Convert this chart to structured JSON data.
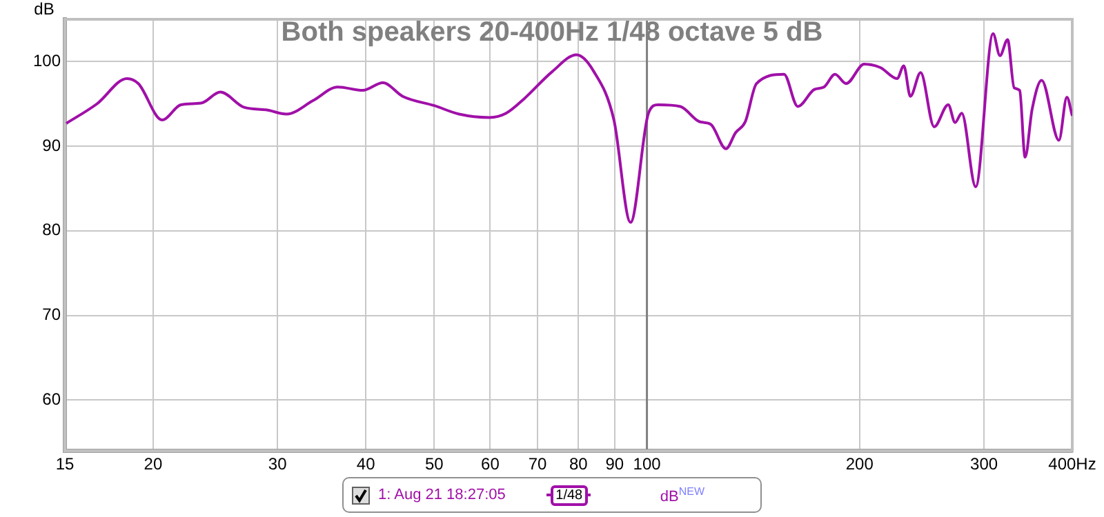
{
  "chart_data": {
    "type": "line",
    "title": "Both speakers 20-400Hz 1/48 octave 5 dB",
    "ylabel": "dB",
    "annotations": [
      "1/48",
      "dB$^{NEW}$"
    ],
    "x": [
      15.07,
      16.65,
      18.37,
      19.06,
      20.6,
      21.9,
      23.4,
      24.9,
      26.9,
      28.9,
      30.9,
      33.7,
      36.5,
      39.6,
      42.3,
      45.1,
      50.0,
      54.2,
      59.9,
      63.2,
      67.0,
      73.4,
      79.5,
      84.0,
      89.8,
      94.8,
      100.5,
      103.7,
      111.5,
      118.7,
      123.1,
      129.4,
      133.5,
      137.8,
      142.9,
      156.3,
      163.5,
      172.5,
      178.1,
      184.6,
      191.4,
      203,
      214,
      226,
      231,
      236,
      244,
      255,
      267,
      273,
      279,
      292,
      309,
      316,
      324,
      331,
      337,
      343,
      351,
      362,
      383,
      393,
      400
    ],
    "series": [
      {
        "name": "1: Aug 21 18:27:05",
        "color": "#a010a8",
        "values": [
          92.7,
          95.0,
          98.0,
          97.4,
          93.1,
          94.9,
          95.1,
          96.4,
          94.6,
          94.3,
          93.8,
          95.4,
          97.0,
          96.6,
          97.5,
          95.9,
          94.8,
          93.8,
          93.4,
          93.9,
          95.6,
          98.8,
          100.8,
          98.9,
          93.1,
          81.0,
          93.9,
          94.9,
          94.7,
          92.9,
          92.6,
          89.7,
          91.6,
          92.9,
          97.4,
          98.5,
          94.7,
          96.7,
          97.0,
          98.5,
          97.4,
          99.7,
          99.3,
          98.0,
          99.5,
          95.9,
          98.7,
          92.3,
          94.9,
          92.8,
          93.9,
          85.2,
          103.3,
          100.7,
          102.6,
          96.9,
          96.6,
          88.7,
          94.4,
          97.8,
          90.7,
          95.8,
          93.6
        ]
      }
    ],
    "log": "x",
    "xlim": [
      15,
      400
    ],
    "xticks": [
      15,
      20,
      30,
      40,
      50,
      60,
      70,
      80,
      90,
      100,
      200,
      300,
      {
        "value": 400,
        "label": "400Hz"
      }
    ],
    "ylim": [
      54,
      105
    ],
    "yticks": [
      60,
      70,
      80,
      90,
      100
    ],
    "ref_lines": [
      {
        "axis": "x",
        "value": 100,
        "color": "#808080"
      }
    ],
    "grid": true,
    "legend": "bottom",
    "marker": "none",
    "line_style": "solid"
  }
}
